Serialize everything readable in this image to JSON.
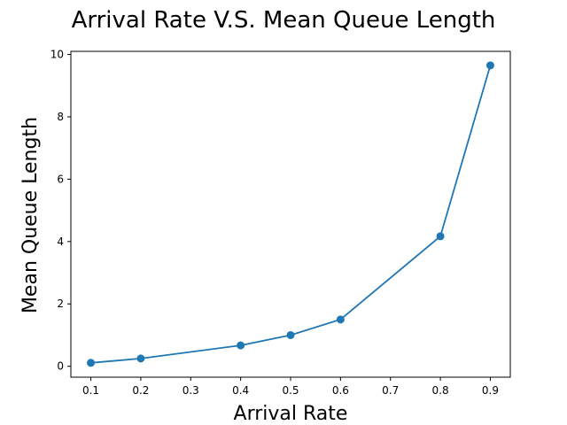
{
  "chart_data": {
    "type": "line",
    "title": "Arrival Rate V.S. Mean Queue Length",
    "xlabel": "Arrival Rate",
    "ylabel": "Mean Queue Length",
    "x": [
      0.1,
      0.2,
      0.4,
      0.5,
      0.6,
      0.8,
      0.9
    ],
    "series": [
      {
        "values": [
          0.11,
          0.25,
          0.67,
          1.0,
          1.5,
          4.17,
          9.65
        ],
        "color": "#1f77b4",
        "marker": "circle"
      }
    ],
    "xlim": [
      0.06,
      0.94
    ],
    "ylim": [
      -0.35,
      10.1
    ],
    "xticks": [
      "0.1",
      "0.2",
      "0.3",
      "0.4",
      "0.5",
      "0.6",
      "0.7",
      "0.8",
      "0.9"
    ],
    "yticks": [
      "0",
      "2",
      "4",
      "6",
      "8",
      "10"
    ],
    "grid": false,
    "legend": false
  }
}
